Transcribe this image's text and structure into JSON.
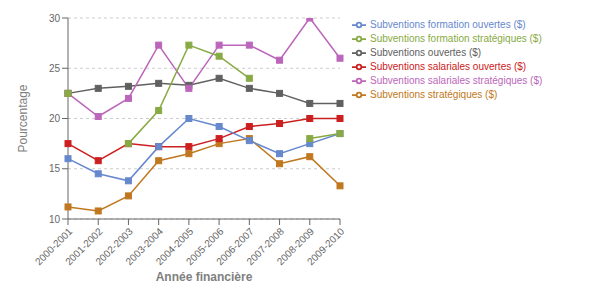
{
  "chart_data": {
    "type": "line",
    "categories": [
      "2000-2001",
      "2001-2002",
      "2002-2003",
      "2003-2004",
      "2004-2005",
      "2005-2006",
      "2006-2007",
      "2007-2008",
      "2008-2009",
      "2009-2010"
    ],
    "series": [
      {
        "name": "Subventions ouvertes ($)",
        "color": "#606060",
        "marker": "square",
        "values": [
          22.5,
          23.0,
          23.2,
          23.5,
          23.3,
          24.0,
          23.0,
          22.5,
          21.5,
          21.5
        ]
      },
      {
        "name": "Subventions stratégiques ($)",
        "color": "#C07820",
        "marker": "square",
        "values": [
          11.2,
          10.8,
          12.3,
          15.8,
          16.5,
          17.5,
          18.0,
          15.5,
          16.2,
          13.3
        ]
      },
      {
        "name": "Subventions salariales ouvertes ($)",
        "color": "#CC2020",
        "marker": "square",
        "values": [
          17.5,
          15.8,
          17.5,
          17.2,
          17.2,
          18.0,
          19.2,
          19.5,
          20.0,
          20.0
        ]
      },
      {
        "name": "Subventions salariales stratégiques ($)",
        "color": "#BB66BB",
        "marker": "square",
        "values": [
          22.5,
          20.2,
          22.0,
          27.3,
          23.0,
          27.3,
          27.3,
          25.8,
          30.0,
          26.0
        ]
      },
      {
        "name": "Subventions formation ouvertes ($)",
        "color": "#6688CC",
        "marker": "square",
        "values": [
          16.0,
          14.5,
          13.8,
          17.2,
          20.0,
          19.2,
          17.8,
          16.5,
          17.5,
          18.5
        ]
      },
      {
        "name": "Subventions formation stratégiques ($)",
        "color": "#88AA44",
        "marker": "square",
        "values": [
          22.5,
          null,
          17.5,
          20.8,
          27.3,
          26.2,
          24.0,
          null,
          18.0,
          18.5
        ]
      }
    ],
    "ylabel": "Pourcentage",
    "xlabel": "Année financière",
    "ylim": [
      10,
      30
    ],
    "yticks": [
      10,
      15,
      20,
      25,
      30
    ],
    "grid": true,
    "legend": "right"
  }
}
